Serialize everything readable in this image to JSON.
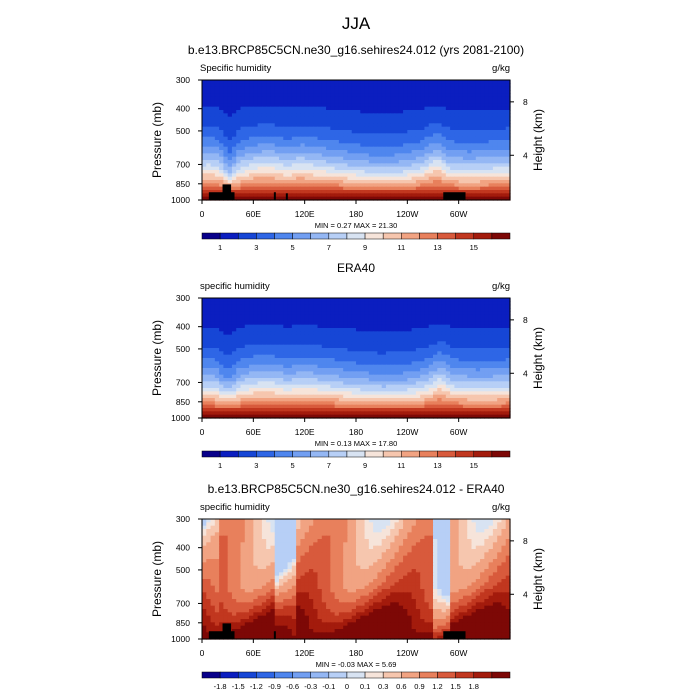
{
  "figure_title": "JJA",
  "chart_data": [
    {
      "type": "heatmap",
      "title": "b.e13.BRCP85C5CN.ne30_g16.sehires24.012 (yrs 2081-2100)",
      "left_label": "Specific humidity",
      "units": "g/kg",
      "ylabel": "Pressure (mb)",
      "ylabel_right": "Height (km)",
      "xticks": [
        "0",
        "60E",
        "120E",
        "180",
        "120W",
        "60W"
      ],
      "yticks": [
        "300",
        "400",
        "500",
        "700",
        "850",
        "1000"
      ],
      "right_ticks": [
        "8",
        "4"
      ],
      "min_max_text": "MIN =   0.27  MAX =  21.30",
      "levels": [
        "1",
        "3",
        "5",
        "7",
        "9",
        "11",
        "13",
        "15"
      ],
      "colors": [
        "#08008a",
        "#0b1ec0",
        "#1646d6",
        "#2e66e6",
        "#4f86ee",
        "#729ff2",
        "#94b7f4",
        "#b7cff6",
        "#d8e3f2",
        "#f6e4da",
        "#f6c6ae",
        "#f1a382",
        "#e8805c",
        "#d85a3c",
        "#c1371f",
        "#a31b0c",
        "#7d0806"
      ],
      "lon_profile": [
        {
          "lon": 0,
          "d": 0.15
        },
        {
          "lon": 10,
          "d": 0.18
        },
        {
          "lon": 20,
          "d": 0.1
        },
        {
          "lon": 32,
          "d": -0.25
        },
        {
          "lon": 45,
          "d": 0.08
        },
        {
          "lon": 60,
          "d": 0.2
        },
        {
          "lon": 80,
          "d": 0.25
        },
        {
          "lon": 100,
          "d": 0.12
        },
        {
          "lon": 115,
          "d": 0.22
        },
        {
          "lon": 140,
          "d": 0.12
        },
        {
          "lon": 170,
          "d": 0.0
        },
        {
          "lon": 200,
          "d": -0.1
        },
        {
          "lon": 230,
          "d": -0.08
        },
        {
          "lon": 255,
          "d": 0.05
        },
        {
          "lon": 275,
          "d": 0.32
        },
        {
          "lon": 290,
          "d": 0.05
        },
        {
          "lon": 310,
          "d": 0.0
        },
        {
          "lon": 340,
          "d": 0.05
        },
        {
          "lon": 360,
          "d": 0.1
        }
      ],
      "terrain": [
        {
          "lon": 8,
          "lon2": 38,
          "p": 925
        },
        {
          "lon": 24,
          "lon2": 34,
          "p": 855
        },
        {
          "lon": 84,
          "lon2": 86,
          "p": 925
        },
        {
          "lon": 98,
          "lon2": 100,
          "p": 935
        },
        {
          "lon": 282,
          "lon2": 308,
          "p": 925
        }
      ]
    },
    {
      "type": "heatmap",
      "title": "ERA40",
      "left_label": "specific humidity",
      "units": "g/kg",
      "ylabel": "Pressure (mb)",
      "ylabel_right": "Height (km)",
      "xticks": [
        "0",
        "60E",
        "120E",
        "180",
        "120W",
        "60W"
      ],
      "yticks": [
        "300",
        "400",
        "500",
        "700",
        "850",
        "1000"
      ],
      "right_ticks": [
        "8",
        "4"
      ],
      "min_max_text": "MIN =   0.13  MAX =  17.80",
      "levels": [
        "1",
        "3",
        "5",
        "7",
        "9",
        "11",
        "13",
        "15"
      ],
      "colors": [
        "#08008a",
        "#0b1ec0",
        "#1646d6",
        "#2e66e6",
        "#4f86ee",
        "#729ff2",
        "#94b7f4",
        "#b7cff6",
        "#d8e3f2",
        "#f6e4da",
        "#f6c6ae",
        "#f1a382",
        "#e8805c",
        "#d85a3c",
        "#c1371f",
        "#a31b0c",
        "#7d0806"
      ],
      "lon_profile": [
        {
          "lon": 0,
          "d": 0.05
        },
        {
          "lon": 15,
          "d": 0.05
        },
        {
          "lon": 30,
          "d": -0.22
        },
        {
          "lon": 45,
          "d": 0.05
        },
        {
          "lon": 60,
          "d": 0.15
        },
        {
          "lon": 80,
          "d": 0.18
        },
        {
          "lon": 100,
          "d": 0.08
        },
        {
          "lon": 120,
          "d": 0.15
        },
        {
          "lon": 150,
          "d": 0.05
        },
        {
          "lon": 180,
          "d": -0.05
        },
        {
          "lon": 210,
          "d": -0.12
        },
        {
          "lon": 240,
          "d": -0.08
        },
        {
          "lon": 262,
          "d": 0.05
        },
        {
          "lon": 278,
          "d": 0.3
        },
        {
          "lon": 295,
          "d": 0.05
        },
        {
          "lon": 320,
          "d": 0.0
        },
        {
          "lon": 345,
          "d": 0.02
        },
        {
          "lon": 360,
          "d": 0.05
        }
      ],
      "terrain": []
    },
    {
      "type": "heatmap",
      "title": "b.e13.BRCP85C5CN.ne30_g16.sehires24.012 - ERA40",
      "left_label": "specific humidity",
      "units": "g/kg",
      "ylabel": "Pressure (mb)",
      "ylabel_right": "Height (km)",
      "xticks": [
        "0",
        "60E",
        "120E",
        "180",
        "120W",
        "60W"
      ],
      "yticks": [
        "300",
        "400",
        "500",
        "700",
        "850",
        "1000"
      ],
      "right_ticks": [
        "8",
        "4"
      ],
      "min_max_text": "MIN =  -0.03  MAX =   5.69",
      "levels": [
        "-1.8",
        "-1.5",
        "-1.2",
        "-0.9",
        "-0.6",
        "-0.3",
        "-0.1",
        "0",
        "0.1",
        "0.3",
        "0.6",
        "0.9",
        "1.2",
        "1.5",
        "1.8"
      ],
      "colors": [
        "#08008a",
        "#0b1ec0",
        "#1646d6",
        "#2e66e6",
        "#4f86ee",
        "#729ff2",
        "#94b7f4",
        "#b7cff6",
        "#d8e3f2",
        "#f6e4da",
        "#f6c6ae",
        "#f1a382",
        "#e8805c",
        "#d85a3c",
        "#c1371f",
        "#a31b0c",
        "#7d0806"
      ],
      "lon_profile": [],
      "terrain": [
        {
          "lon": 8,
          "lon2": 38,
          "p": 925
        },
        {
          "lon": 24,
          "lon2": 34,
          "p": 855
        },
        {
          "lon": 84,
          "lon2": 86,
          "p": 925
        },
        {
          "lon": 282,
          "lon2": 308,
          "p": 925
        }
      ]
    }
  ]
}
